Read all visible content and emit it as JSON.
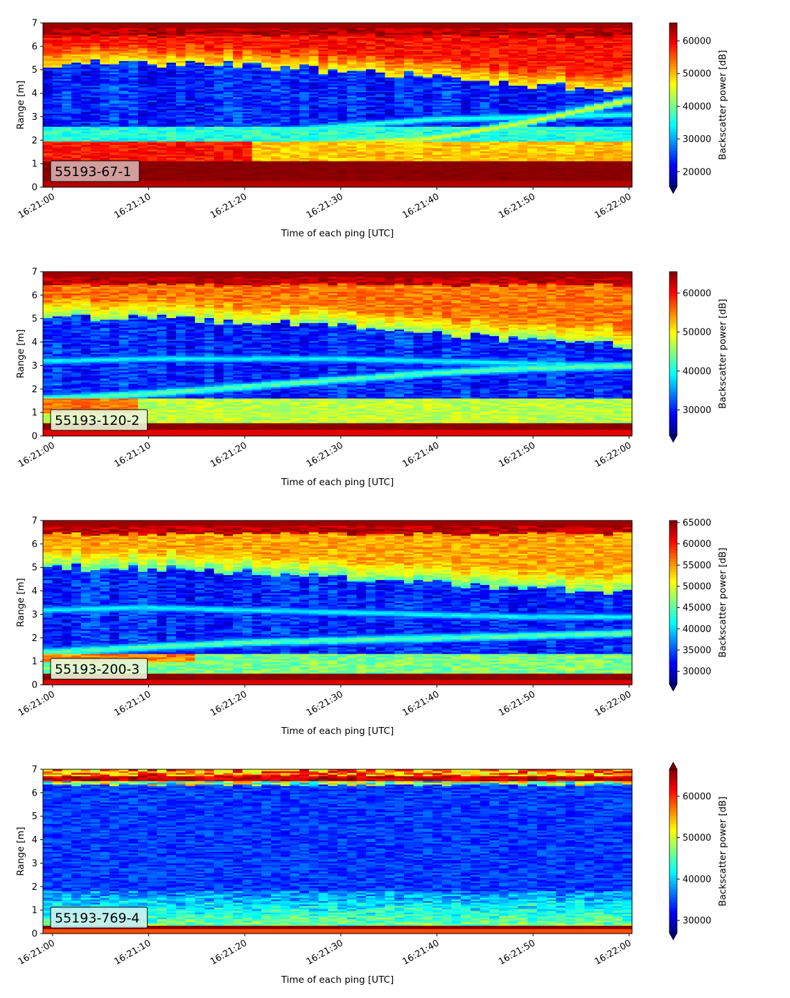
{
  "chart_data": [
    {
      "type": "heatmap",
      "label": "55193-67-1",
      "label_bg": "#d9aeae",
      "xlabel": "Time of each ping [UTC]",
      "ylabel": "Range [m]",
      "ylim": [
        0,
        7
      ],
      "yticks": [
        "0",
        "1",
        "2",
        "3",
        "4",
        "5",
        "6",
        "7"
      ],
      "xticks": [
        "16:21:00",
        "16:21:10",
        "16:21:20",
        "16:21:30",
        "16:21:40",
        "16:21:50",
        "16:22:00"
      ],
      "xlim_seconds_after_16_21_00": [
        -1,
        60.3
      ],
      "colorbar": {
        "label": "Backscatter power [dB]",
        "min": 15500,
        "max": 65500,
        "ticks": [
          "20000",
          "30000",
          "40000",
          "50000",
          "60000"
        ],
        "extend": "min"
      },
      "features": {
        "band_range_m": [
          0.25,
          1.1
        ],
        "surface_layer_top_m": [
          5.3,
          5.3,
          5.2,
          5.0,
          4.7,
          4.4,
          4.1
        ],
        "rising_echo_m": [
          1.6,
          1.7,
          1.8,
          1.9,
          2.1,
          2.8,
          3.7
        ],
        "secondary_echo_m": [
          2.1,
          2.2,
          2.3,
          2.6,
          2.9,
          3.0,
          3.1
        ]
      }
    },
    {
      "type": "heatmap",
      "label": "55193-120-2",
      "label_bg": "#eaf5d8",
      "xlabel": "Time of each ping [UTC]",
      "ylabel": "Range [m]",
      "ylim": [
        0,
        7
      ],
      "yticks": [
        "0",
        "1",
        "2",
        "3",
        "4",
        "5",
        "6",
        "7"
      ],
      "xticks": [
        "16:21:00",
        "16:21:10",
        "16:21:20",
        "16:21:30",
        "16:21:40",
        "16:21:50",
        "16:22:00"
      ],
      "xlim_seconds_after_16_21_00": [
        -1,
        60.3
      ],
      "colorbar": {
        "label": "Backscatter power [dB]",
        "min": 23500,
        "max": 65500,
        "ticks": [
          "30000",
          "40000",
          "50000",
          "60000"
        ],
        "extend": "min"
      },
      "features": {
        "band_range_m": [
          0.3,
          0.55
        ],
        "surface_layer_top_m": [
          5.1,
          5.0,
          4.9,
          4.7,
          4.4,
          4.1,
          3.9
        ],
        "rising_echo_m": [
          1.6,
          1.8,
          2.1,
          2.4,
          2.7,
          2.9,
          3.0
        ],
        "secondary_echo_m": [
          3.2,
          3.3,
          3.3,
          3.3,
          3.2,
          3.1,
          3.0
        ]
      }
    },
    {
      "type": "heatmap",
      "label": "55193-200-3",
      "label_bg": "#eaf5d8",
      "xlabel": "Time of each ping [UTC]",
      "ylabel": "Range [m]",
      "ylim": [
        0,
        7
      ],
      "yticks": [
        "0",
        "1",
        "2",
        "3",
        "4",
        "5",
        "6",
        "7"
      ],
      "xticks": [
        "16:21:00",
        "16:21:10",
        "16:21:20",
        "16:21:30",
        "16:21:40",
        "16:21:50",
        "16:22:00"
      ],
      "xlim_seconds_after_16_21_00": [
        -1,
        60.3
      ],
      "colorbar": {
        "label": "Backscatter power [dB]",
        "min": 27000,
        "max": 65500,
        "ticks": [
          "30000",
          "35000",
          "40000",
          "45000",
          "50000",
          "55000",
          "60000",
          "65000"
        ],
        "extend": "min"
      },
      "features": {
        "band_range_m": [
          0.2,
          0.5
        ],
        "surface_layer_top_m": [
          5.0,
          5.0,
          4.8,
          4.6,
          4.4,
          4.1,
          3.9
        ],
        "rising_echo_m": [
          1.4,
          1.6,
          1.8,
          1.9,
          2.0,
          2.1,
          2.2
        ],
        "secondary_echo_m": [
          3.2,
          3.3,
          3.2,
          3.1,
          3.0,
          2.9,
          2.9
        ]
      }
    },
    {
      "type": "heatmap",
      "label": "55193-769-4",
      "label_bg": "#cbeef2",
      "xlabel": "Time of each ping [UTC]",
      "ylabel": "Range [m]",
      "ylim": [
        0,
        7
      ],
      "yticks": [
        "0",
        "1",
        "2",
        "3",
        "4",
        "5",
        "6",
        "7"
      ],
      "xticks": [
        "16:21:00",
        "16:21:10",
        "16:21:20",
        "16:21:30",
        "16:21:40",
        "16:21:50",
        "16:22:00"
      ],
      "xlim_seconds_after_16_21_00": [
        -1,
        60.3
      ],
      "colorbar": {
        "label": "Backscatter power [dB]",
        "min": 27000,
        "max": 66500,
        "ticks": [
          "30000",
          "40000",
          "50000",
          "60000"
        ],
        "extend": "both"
      },
      "features": {
        "band_range_m": [
          0.2,
          0.35
        ],
        "surface_layer_top_m": [
          6.4,
          6.4,
          6.4,
          6.4,
          6.4,
          6.4,
          6.4
        ],
        "rising_echo_m": [],
        "secondary_echo_m": []
      }
    }
  ]
}
